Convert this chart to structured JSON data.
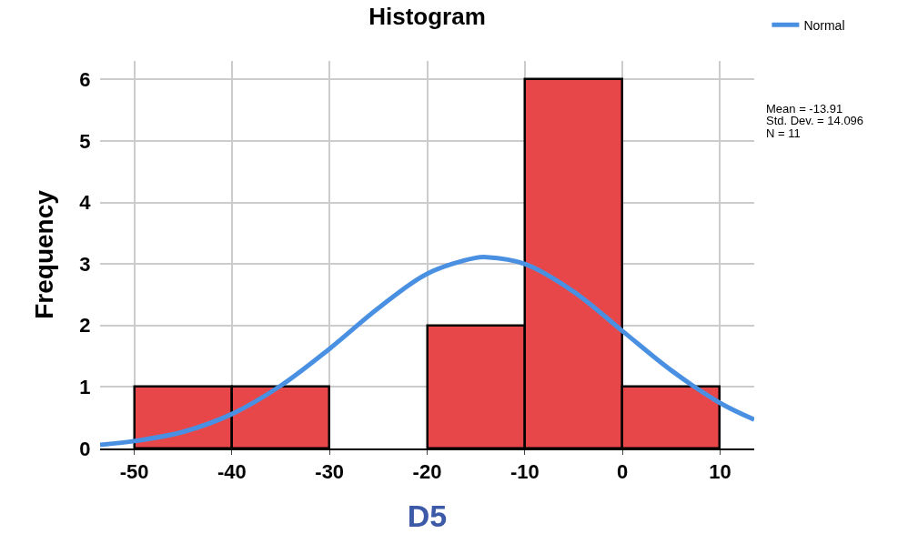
{
  "chart_data": {
    "type": "histogram",
    "title": "Histogram",
    "xlabel": "D5",
    "ylabel": "Frequency",
    "bins": [
      -50,
      -40,
      -30,
      -20,
      -10,
      0,
      10
    ],
    "values": [
      1,
      1,
      0,
      2,
      6,
      1
    ],
    "color": "#e8474a",
    "series": [
      {
        "type": "line",
        "name": "Normal",
        "color": "#4a90e2",
        "x": [
          -53.5,
          -50,
          -45,
          -40,
          -35,
          -30,
          -25,
          -20,
          -15,
          -13.91,
          -10,
          -5,
          0,
          5,
          10,
          13.5
        ],
        "values": [
          0.06,
          0.12,
          0.27,
          0.56,
          1.02,
          1.62,
          2.28,
          2.84,
          3.1,
          3.11,
          3.0,
          2.55,
          1.91,
          1.27,
          0.74,
          0.47
        ]
      }
    ],
    "annotations": [
      "Mean = -13.91",
      "Std. Dev. = 14.096",
      "N = 11"
    ],
    "xlim": [
      -53.5,
      13.5
    ],
    "xticks": [
      -50,
      -40,
      -30,
      -20,
      -10,
      0,
      10
    ],
    "ylim": [
      0,
      6.3
    ],
    "yticks": [
      0,
      1,
      2,
      3,
      4,
      5,
      6
    ],
    "grid": true,
    "legend": "top right"
  }
}
